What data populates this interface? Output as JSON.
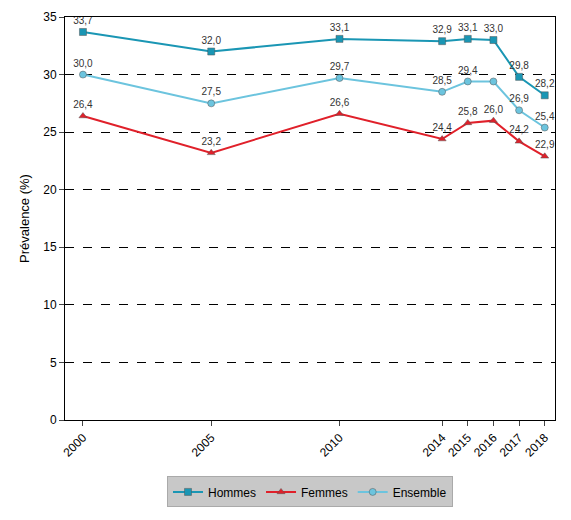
{
  "chart_data": {
    "type": "line",
    "y_label": "Prévalence (%)",
    "x": [
      2000,
      2005,
      2010,
      2014,
      2015,
      2016,
      2017,
      2018
    ],
    "xlim": [
      1999.3,
      2018.4
    ],
    "xticks": [
      2000,
      2005,
      2010,
      2014,
      2015,
      2016,
      2017,
      2018
    ],
    "ylim": [
      0,
      35
    ],
    "yticks": [
      0,
      5,
      10,
      15,
      20,
      25,
      30,
      35
    ],
    "grid": true,
    "legend": "bottom",
    "data_labels": true,
    "series": [
      {
        "name": "Hommes",
        "color": "#1a96b4",
        "marker": "square",
        "values": [
          33.7,
          32.0,
          33.1,
          32.9,
          33.1,
          33.0,
          29.8,
          28.2
        ],
        "value_labels": [
          "33,7",
          "32,0",
          "33,1",
          "32,9",
          "33,1",
          "33,0",
          "29,8",
          "28,2"
        ]
      },
      {
        "name": "Femmes",
        "color": "#e0202a",
        "marker": "triangle-up",
        "values": [
          26.4,
          23.2,
          26.6,
          24.4,
          25.8,
          26.0,
          24.2,
          22.9
        ],
        "value_labels": [
          "26,4",
          "23,2",
          "26,6",
          "24,4",
          "25,8",
          "26,0",
          "24,2",
          "22,9"
        ]
      },
      {
        "name": "Ensemble",
        "color": "#6cc4de",
        "marker": "circle",
        "values": [
          30.0,
          27.5,
          29.7,
          28.5,
          29.4,
          29.4,
          26.9,
          25.4
        ],
        "value_labels": [
          "30,0",
          "27,5",
          "29,7",
          "28,5",
          "29,4",
          null,
          "26,9",
          "25,4"
        ]
      }
    ]
  }
}
